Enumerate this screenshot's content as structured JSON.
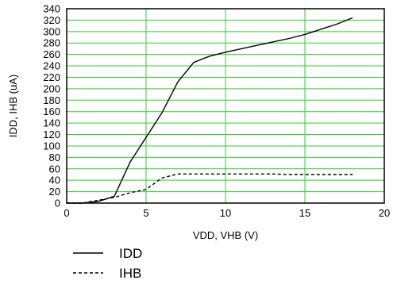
{
  "chart_data": {
    "type": "line",
    "title": "",
    "xlabel": "VDD, VHB (V)",
    "ylabel": "IDD, IHB (uA)",
    "xlim": [
      0,
      20
    ],
    "ylim": [
      0,
      340
    ],
    "x_ticks": [
      0,
      5,
      10,
      15,
      20
    ],
    "y_ticks": [
      0,
      20,
      40,
      60,
      80,
      100,
      120,
      140,
      160,
      180,
      200,
      220,
      240,
      260,
      280,
      300,
      320,
      340
    ],
    "grid": true,
    "grid_color": "#33cc33",
    "legend_position": "bottom-left",
    "series": [
      {
        "name": "IDD",
        "line_style": "solid",
        "color": "#000000",
        "x": [
          0,
          1,
          2,
          3,
          4,
          5,
          6,
          7,
          8,
          9,
          10,
          11,
          12,
          13,
          14,
          15,
          16,
          17,
          18
        ],
        "y": [
          0,
          0,
          3,
          12,
          72,
          115,
          158,
          212,
          246,
          257,
          264,
          270,
          276,
          282,
          288,
          295,
          304,
          313,
          324
        ]
      },
      {
        "name": "IHB",
        "line_style": "dashed",
        "color": "#000000",
        "x": [
          0,
          1,
          2,
          3,
          4,
          5,
          6,
          7,
          8,
          9,
          10,
          11,
          12,
          13,
          14,
          15,
          16,
          17,
          18
        ],
        "y": [
          0,
          0,
          5,
          10,
          18,
          24,
          44,
          51,
          51,
          51,
          51,
          51,
          51,
          51,
          50,
          50,
          50,
          50,
          50
        ]
      }
    ]
  }
}
